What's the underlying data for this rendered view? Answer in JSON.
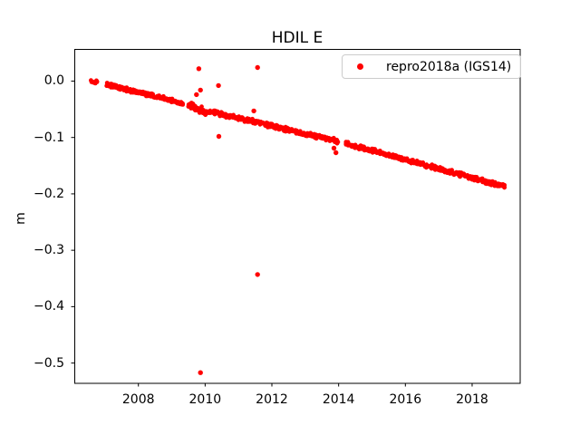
{
  "figure": {
    "background": "#ffffff",
    "text_color": "#000000"
  },
  "chart_data": {
    "type": "scatter",
    "title": "HDIL E",
    "xlabel": "",
    "ylabel": "m",
    "grid": false,
    "legend": {
      "label": "repro2018a (IGS14)",
      "position": "upper right",
      "marker": "dot",
      "marker_color": "#ff0000"
    },
    "xlim": [
      2006.08,
      2019.44
    ],
    "ylim": [
      -0.536,
      0.057
    ],
    "xticks": [
      {
        "value": 2008,
        "label": "2008"
      },
      {
        "value": 2010,
        "label": "2010"
      },
      {
        "value": 2012,
        "label": "2012"
      },
      {
        "value": 2014,
        "label": "2014"
      },
      {
        "value": 2016,
        "label": "2016"
      },
      {
        "value": 2018,
        "label": "2018"
      }
    ],
    "yticks": [
      {
        "value": 0.0,
        "label": "0.0"
      },
      {
        "value": -0.1,
        "label": "−0.1"
      },
      {
        "value": -0.2,
        "label": "−0.2"
      },
      {
        "value": -0.3,
        "label": "−0.3"
      },
      {
        "value": -0.4,
        "label": "−0.4"
      },
      {
        "value": -0.5,
        "label": "−0.5"
      }
    ],
    "series": [
      {
        "name": "repro2018a (IGS14)",
        "color": "#ff0000",
        "units": "m (east displacement) vs decimal year",
        "trend_segments": [
          {
            "t_start": 2006.58,
            "t_end": 2006.76,
            "v_start": -0.001,
            "v_end": -0.003,
            "spread": 0.004
          },
          {
            "t_start": 2007.05,
            "t_end": 2009.33,
            "v_start": -0.006,
            "v_end": -0.039,
            "spread": 0.004
          },
          {
            "t_start": 2009.5,
            "t_end": 2010.12,
            "v_start": -0.042,
            "v_end": -0.056,
            "spread": 0.008
          },
          {
            "t_start": 2010.15,
            "t_end": 2013.98,
            "v_start": -0.054,
            "v_end": -0.107,
            "spread": 0.0045
          },
          {
            "t_start": 2014.22,
            "t_end": 2018.97,
            "v_start": -0.111,
            "v_end": -0.187,
            "spread": 0.0045
          }
        ],
        "outliers": [
          [
            2009.74,
            -0.024
          ],
          [
            2009.81,
            0.022
          ],
          [
            2009.86,
            -0.016
          ],
          [
            2009.86,
            -0.517
          ],
          [
            2010.4,
            -0.008
          ],
          [
            2010.41,
            -0.098
          ],
          [
            2011.46,
            -0.053
          ],
          [
            2011.57,
            0.024
          ],
          [
            2011.57,
            -0.343
          ],
          [
            2013.86,
            -0.119
          ],
          [
            2013.92,
            -0.127
          ]
        ]
      }
    ]
  }
}
